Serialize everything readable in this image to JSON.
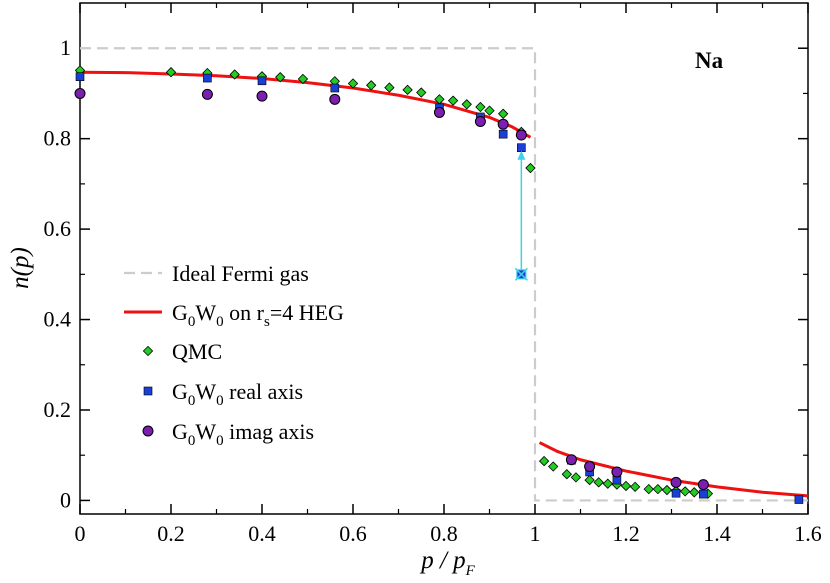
{
  "chart_data": {
    "type": "scatter",
    "title": "",
    "annotation": "Na",
    "xlabel": {
      "main": "p / p",
      "sub": "F"
    },
    "ylabel": "n(p)",
    "xlim": [
      0,
      1.6
    ],
    "ylim": [
      -0.03,
      1.1
    ],
    "x_ticks": [
      0,
      0.2,
      0.4,
      0.6,
      0.8,
      1,
      1.2,
      1.4,
      1.6
    ],
    "x_tick_labels": [
      "0",
      "0.2",
      "0.4",
      "0.6",
      "0.8",
      "1",
      "1.2",
      "1.4",
      "1.6"
    ],
    "y_ticks": [
      0,
      0.2,
      0.4,
      0.6,
      0.8,
      1
    ],
    "y_tick_labels": [
      "0",
      "0.2",
      "0.4",
      "0.6",
      "0.8",
      "1"
    ],
    "colors": {
      "ideal": "#cccccc",
      "heg": "#ee1111",
      "qmc": "#22cc22",
      "real": "#1a3fd6",
      "imag": "#7a1fb0",
      "arrow": "#40d0e8"
    },
    "series": [
      {
        "name": "Ideal Fermi gas",
        "legend_main": "Ideal Fermi gas",
        "kind": "dashed-line",
        "points": [
          [
            0,
            1.0
          ],
          [
            1.0,
            1.0
          ],
          [
            1.0,
            0.0
          ],
          [
            1.6,
            0.0
          ]
        ]
      },
      {
        "name": "G0W0 on rs=4 HEG",
        "legend_parts": [
          "G",
          "0",
          "W",
          "0",
          " on r",
          "s",
          "=4 HEG"
        ],
        "kind": "line",
        "segments": [
          [
            [
              0,
              0.947
            ],
            [
              0.1,
              0.946
            ],
            [
              0.2,
              0.943
            ],
            [
              0.3,
              0.939
            ],
            [
              0.4,
              0.933
            ],
            [
              0.5,
              0.924
            ],
            [
              0.6,
              0.912
            ],
            [
              0.7,
              0.896
            ],
            [
              0.8,
              0.876
            ],
            [
              0.9,
              0.847
            ],
            [
              0.95,
              0.826
            ],
            [
              0.99,
              0.803
            ]
          ],
          [
            [
              1.01,
              0.128
            ],
            [
              1.05,
              0.108
            ],
            [
              1.1,
              0.09
            ],
            [
              1.2,
              0.065
            ],
            [
              1.3,
              0.045
            ],
            [
              1.4,
              0.03
            ],
            [
              1.5,
              0.018
            ],
            [
              1.6,
              0.01
            ]
          ]
        ]
      },
      {
        "name": "QMC",
        "legend_main": "QMC",
        "kind": "diamond",
        "points": [
          [
            0,
            0.951
          ],
          [
            0.2,
            0.947
          ],
          [
            0.28,
            0.945
          ],
          [
            0.34,
            0.942
          ],
          [
            0.4,
            0.938
          ],
          [
            0.44,
            0.936
          ],
          [
            0.49,
            0.932
          ],
          [
            0.56,
            0.927
          ],
          [
            0.6,
            0.922
          ],
          [
            0.64,
            0.918
          ],
          [
            0.68,
            0.913
          ],
          [
            0.72,
            0.908
          ],
          [
            0.75,
            0.902
          ],
          [
            0.79,
            0.887
          ],
          [
            0.82,
            0.884
          ],
          [
            0.85,
            0.876
          ],
          [
            0.88,
            0.87
          ],
          [
            0.9,
            0.862
          ],
          [
            0.93,
            0.855
          ],
          [
            0.97,
            0.815
          ],
          [
            0.99,
            0.735
          ],
          [
            1.02,
            0.087
          ],
          [
            1.04,
            0.075
          ],
          [
            1.07,
            0.058
          ],
          [
            1.09,
            0.051
          ],
          [
            1.12,
            0.045
          ],
          [
            1.14,
            0.04
          ],
          [
            1.16,
            0.037
          ],
          [
            1.18,
            0.035
          ],
          [
            1.2,
            0.032
          ],
          [
            1.22,
            0.03
          ],
          [
            1.25,
            0.025
          ],
          [
            1.27,
            0.025
          ],
          [
            1.29,
            0.023
          ],
          [
            1.31,
            0.021
          ],
          [
            1.33,
            0.02
          ],
          [
            1.35,
            0.018
          ],
          [
            1.38,
            0.015
          ]
        ]
      },
      {
        "name": "G0W0 real axis",
        "legend_parts": [
          "G",
          "0",
          "W",
          "0",
          " real axis"
        ],
        "kind": "square",
        "points": [
          [
            0,
            0.937
          ],
          [
            0.28,
            0.934
          ],
          [
            0.4,
            0.928
          ],
          [
            0.56,
            0.912
          ],
          [
            0.79,
            0.868
          ],
          [
            0.88,
            0.848
          ],
          [
            0.93,
            0.81
          ],
          [
            0.97,
            0.78
          ],
          [
            1.08,
            0.089
          ],
          [
            1.12,
            0.063
          ],
          [
            1.18,
            0.045
          ],
          [
            1.31,
            0.016
          ],
          [
            1.37,
            0.014
          ],
          [
            1.58,
            0.002
          ]
        ]
      },
      {
        "name": "G0W0 imag axis",
        "legend_parts": [
          "G",
          "0",
          "W",
          "0",
          " imag axis"
        ],
        "kind": "circle",
        "points": [
          [
            0,
            0.9
          ],
          [
            0.28,
            0.898
          ],
          [
            0.4,
            0.894
          ],
          [
            0.56,
            0.887
          ],
          [
            0.79,
            0.858
          ],
          [
            0.88,
            0.838
          ],
          [
            0.93,
            0.832
          ],
          [
            0.97,
            0.808
          ],
          [
            1.08,
            0.09
          ],
          [
            1.12,
            0.075
          ],
          [
            1.18,
            0.063
          ],
          [
            1.31,
            0.04
          ],
          [
            1.37,
            0.035
          ]
        ]
      }
    ],
    "arrow": {
      "x": 0.97,
      "y_from": 0.5,
      "y_to": 0.78
    },
    "legend_position": "center-left"
  }
}
